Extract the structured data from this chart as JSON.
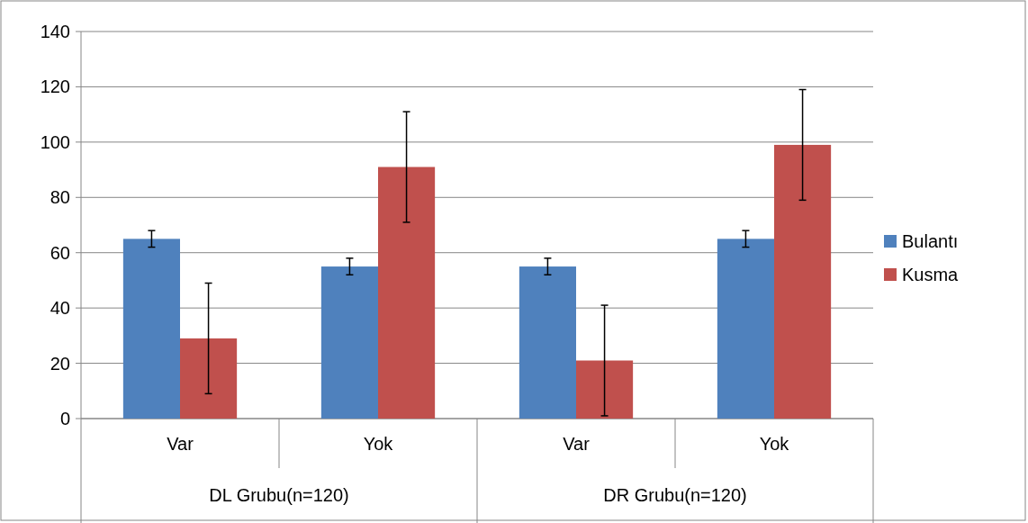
{
  "chart_data": {
    "type": "bar",
    "categories": [
      "Var",
      "Yok",
      "Var",
      "Yok"
    ],
    "series": [
      {
        "name": "Bulantı",
        "color": "#4f81bd",
        "values": [
          65,
          55,
          55,
          65
        ],
        "errors": [
          3,
          3,
          3,
          3
        ]
      },
      {
        "name": "Kusma",
        "color": "#c0504d",
        "values": [
          29,
          91,
          21,
          99
        ],
        "errors": [
          20,
          20,
          20,
          20
        ]
      }
    ],
    "ylim": [
      0,
      140
    ],
    "yticks": [
      0,
      20,
      40,
      60,
      80,
      100,
      120,
      140
    ],
    "grid": "y",
    "legend": "right",
    "annotations": [
      "DL Grubu(n=120)",
      "DR Grubu(n=120)"
    ]
  }
}
